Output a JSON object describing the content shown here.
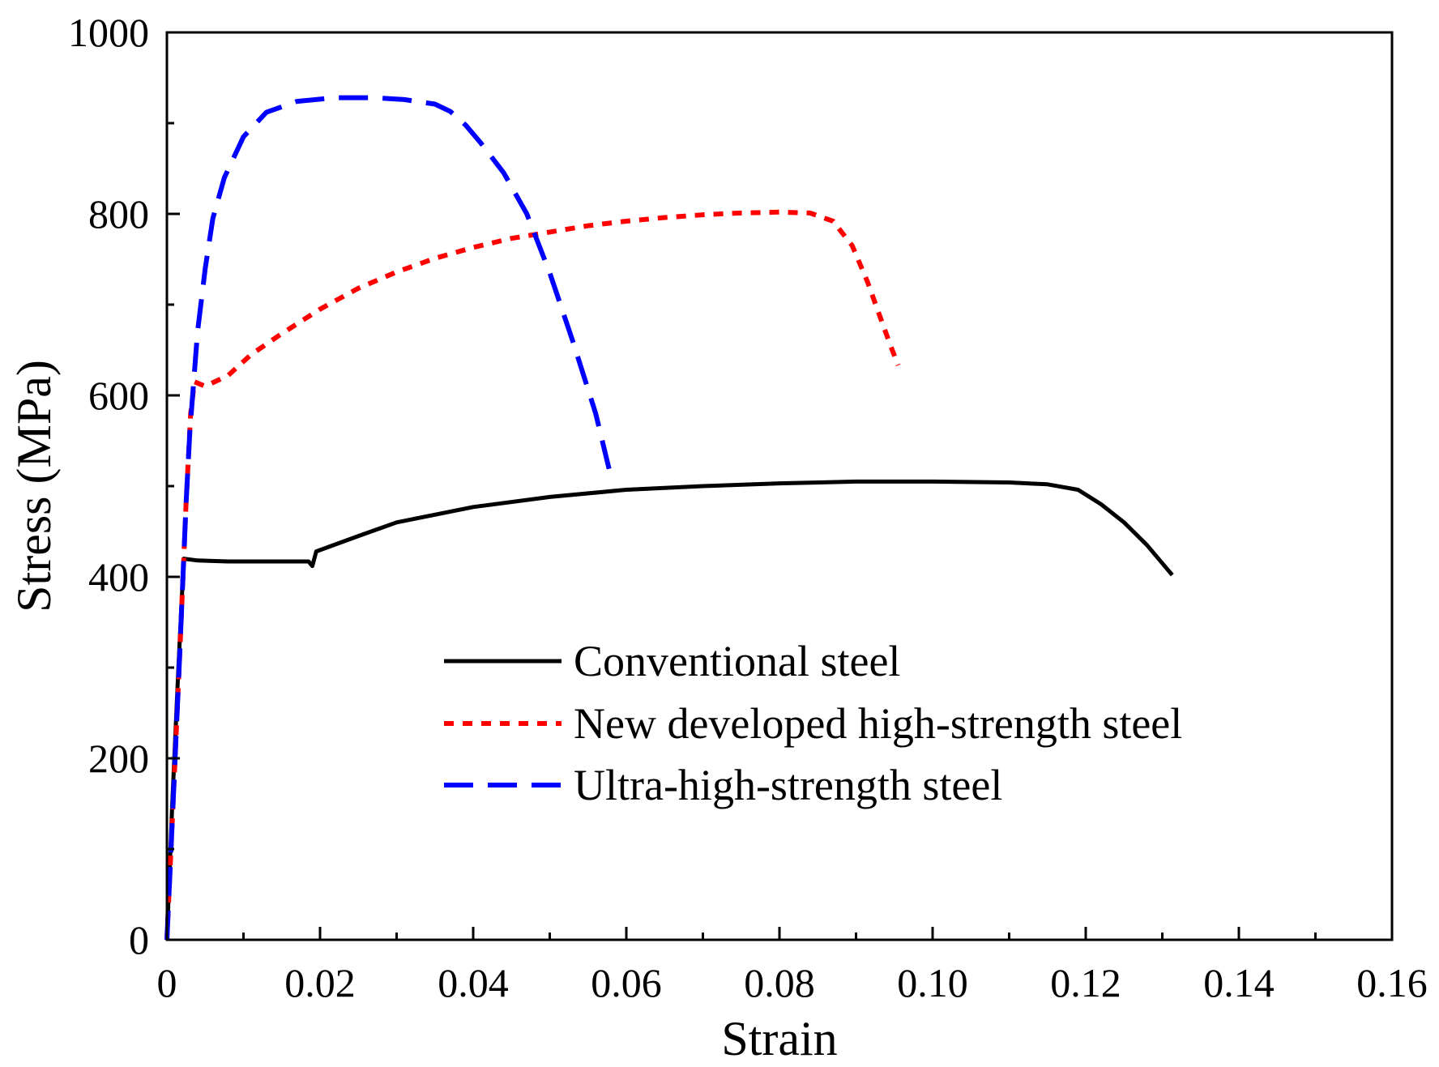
{
  "chart_data": {
    "type": "line",
    "title": "",
    "xlabel": "Strain",
    "ylabel": "Stress (MPa)",
    "xlim": [
      0,
      0.16
    ],
    "ylim": [
      0,
      1000
    ],
    "xticks": [
      0,
      0.02,
      0.04,
      0.06,
      0.08,
      0.1,
      0.12,
      0.14,
      0.16
    ],
    "xtick_labels": [
      "0",
      "0.02",
      "0.04",
      "0.06",
      "0.08",
      "0.10",
      "0.12",
      "0.14",
      "0.16"
    ],
    "yticks": [
      0,
      200,
      400,
      600,
      800,
      1000
    ],
    "ytick_labels": [
      "0",
      "200",
      "400",
      "600",
      "800",
      "1000"
    ],
    "grid": false,
    "legend_position": "center-right",
    "series": [
      {
        "name": "Conventional steel",
        "color": "#000000",
        "style": "solid",
        "x": [
          0,
          0.0007,
          0.0015,
          0.0022,
          0.004,
          0.008,
          0.012,
          0.016,
          0.0185,
          0.019,
          0.0195,
          0.025,
          0.03,
          0.04,
          0.05,
          0.06,
          0.07,
          0.08,
          0.09,
          0.1,
          0.11,
          0.115,
          0.119,
          0.122,
          0.125,
          0.128,
          0.1305,
          0.1313
        ],
        "y": [
          0,
          150,
          300,
          420,
          418,
          417,
          417,
          417,
          417,
          412,
          428,
          445,
          460,
          477,
          488,
          496,
          500,
          503,
          505,
          505,
          504,
          502,
          496,
          480,
          460,
          435,
          410,
          402
        ]
      },
      {
        "name": "New developed high-strength steel",
        "color": "#ff0000",
        "style": "dotted",
        "x": [
          0,
          0.0008,
          0.0017,
          0.0025,
          0.0031,
          0.0036,
          0.005,
          0.008,
          0.011,
          0.015,
          0.02,
          0.025,
          0.03,
          0.035,
          0.04,
          0.045,
          0.05,
          0.055,
          0.06,
          0.065,
          0.07,
          0.075,
          0.08,
          0.084,
          0.087,
          0.0895,
          0.0915,
          0.093,
          0.0945,
          0.0955
        ],
        "y": [
          0,
          150,
          320,
          480,
          580,
          615,
          610,
          622,
          645,
          668,
          695,
          718,
          736,
          751,
          763,
          773,
          780,
          787,
          792,
          796,
          799,
          801,
          802,
          801,
          792,
          765,
          725,
          690,
          655,
          633
        ]
      },
      {
        "name": "Ultra-high-strength steel",
        "color": "#0000ff",
        "style": "dashed",
        "x": [
          0,
          0.0008,
          0.0016,
          0.0025,
          0.003,
          0.004,
          0.005,
          0.006,
          0.0075,
          0.01,
          0.013,
          0.017,
          0.022,
          0.027,
          0.031,
          0.035,
          0.037,
          0.039,
          0.041,
          0.044,
          0.047,
          0.05,
          0.053,
          0.056,
          0.058
        ],
        "y": [
          0,
          150,
          300,
          480,
          560,
          670,
          740,
          795,
          840,
          885,
          912,
          924,
          928,
          928,
          926,
          921,
          913,
          898,
          878,
          845,
          800,
          735,
          660,
          580,
          510
        ]
      }
    ]
  }
}
